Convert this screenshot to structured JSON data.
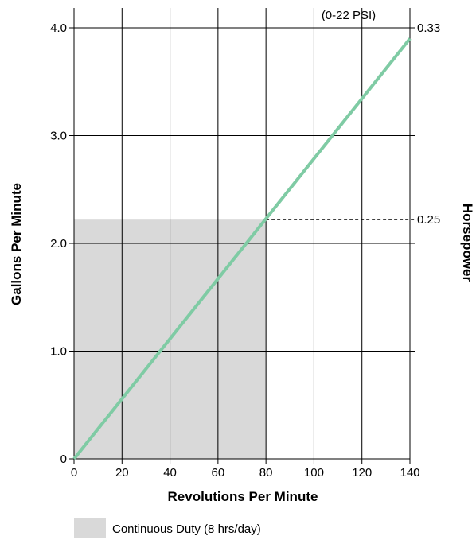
{
  "chart_data": {
    "type": "line",
    "title": "",
    "xlabel": "Revolutions Per Minute",
    "ylabel": "Gallons Per Minute",
    "y2label": "Horsepower",
    "xlim": [
      0,
      140
    ],
    "ylim": [
      0,
      4.0
    ],
    "x_ticks": [
      0,
      20,
      40,
      60,
      80,
      100,
      120,
      140
    ],
    "x_tick_labels": [
      "0",
      "20",
      "40",
      "60",
      "80",
      "100",
      "120",
      "140"
    ],
    "y_ticks": [
      0,
      1.0,
      2.0,
      3.0,
      4.0
    ],
    "y_tick_labels": [
      "0",
      "1.0",
      "2.0",
      "3.0",
      "4.0"
    ],
    "hp_markers": [
      {
        "label": "0.25",
        "y": 2.22,
        "dashed_from_x": 80
      },
      {
        "label": "0.33",
        "y": 4.0
      }
    ],
    "annotation": "(0-22 PSI)",
    "series": [
      {
        "x": [
          0,
          140
        ],
        "y": [
          0,
          3.9
        ],
        "color": "#7fcba4"
      }
    ],
    "shaded_region": {
      "x": [
        0,
        80
      ],
      "y": [
        0,
        2.22
      ],
      "color": "#d9d9d9"
    },
    "legend": [
      {
        "label": "Continuous Duty (8 hrs/day)",
        "color": "#d9d9d9"
      }
    ],
    "grid": true
  }
}
